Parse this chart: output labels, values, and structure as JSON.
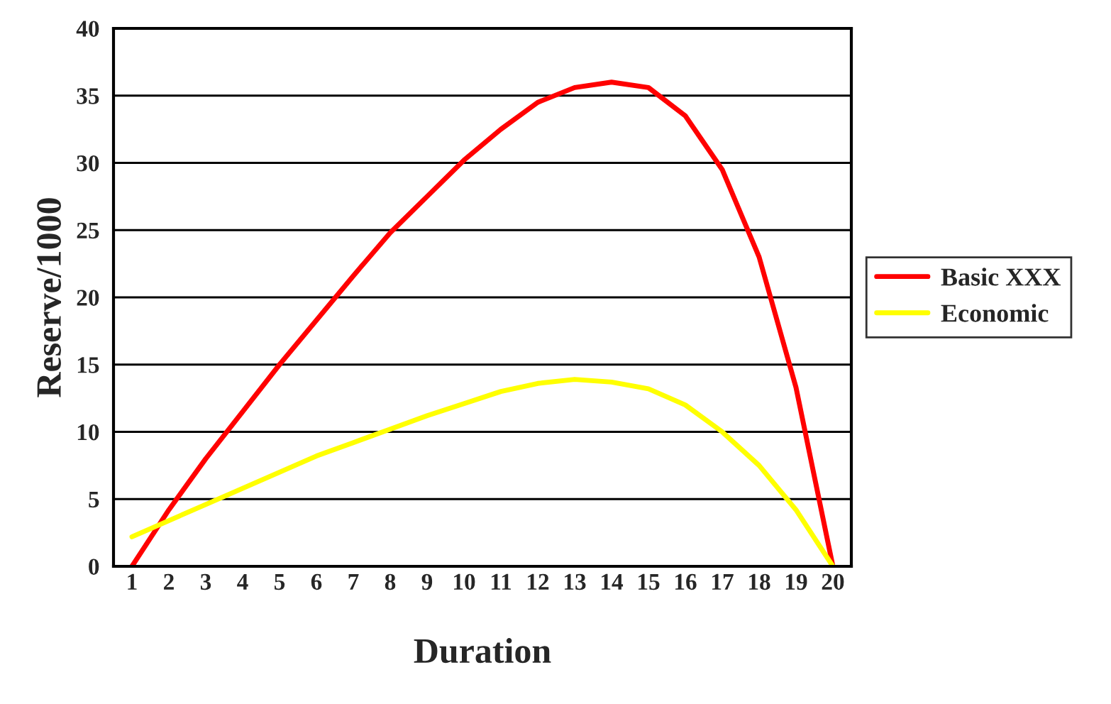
{
  "chart_data": {
    "type": "line",
    "xlabel": "Duration",
    "ylabel": "Reserve/1000",
    "categories": [
      "1",
      "2",
      "3",
      "4",
      "5",
      "6",
      "7",
      "8",
      "9",
      "10",
      "11",
      "12",
      "13",
      "14",
      "15",
      "16",
      "17",
      "18",
      "19",
      "20"
    ],
    "series": [
      {
        "name": "Basic XXX",
        "color": "#ff0000",
        "values": [
          0,
          4.2,
          8,
          11.5,
          15,
          18.3,
          21.6,
          24.8,
          27.5,
          30.2,
          32.5,
          34.5,
          35.6,
          36,
          35.6,
          33.5,
          29.5,
          23,
          13.3,
          0
        ]
      },
      {
        "name": "Economic",
        "color": "#ffff00",
        "values": [
          2.2,
          3.4,
          4.6,
          5.8,
          7,
          8.2,
          9.2,
          10.2,
          11.2,
          12.1,
          13,
          13.6,
          13.9,
          13.7,
          13.2,
          12,
          10,
          7.5,
          4.2,
          0
        ]
      }
    ],
    "ylim": [
      0,
      40
    ],
    "yticks": [
      0,
      5,
      10,
      15,
      20,
      25,
      30,
      35,
      40
    ],
    "grid": "y",
    "legend": "right",
    "marker": "none",
    "line_style": "solid"
  }
}
